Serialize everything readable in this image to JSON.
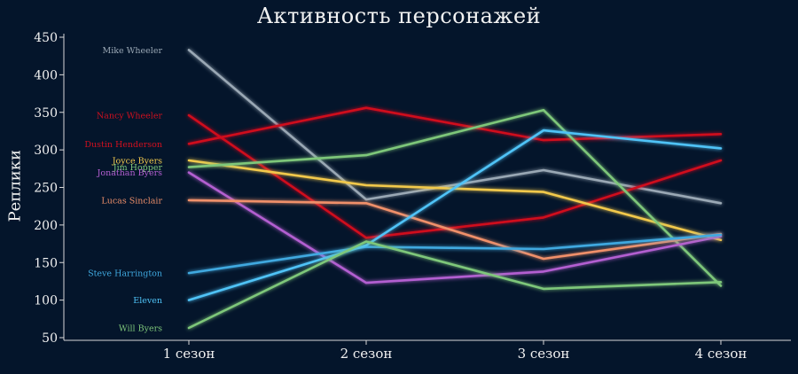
{
  "chart_data": {
    "type": "line",
    "title": "Активность персонажей",
    "xlabel": "",
    "ylabel": "Реплики",
    "categories": [
      "1 сезон",
      "2 сезон",
      "3 сезон",
      "4 сезон"
    ],
    "ylim": [
      45,
      450
    ],
    "yticks": [
      50,
      100,
      150,
      200,
      250,
      300,
      350,
      400,
      450
    ],
    "grid": false,
    "legend": "inline labels at left",
    "series": [
      {
        "name": "Mike Wheeler",
        "color": "#9aa8b5",
        "values": [
          433,
          234,
          273,
          229
        ]
      },
      {
        "name": "Nancy Wheeler",
        "color": "#d0101f",
        "values": [
          346,
          183,
          210,
          286
        ]
      },
      {
        "name": "Dustin Henderson",
        "color": "#d0101f",
        "values": [
          308,
          356,
          313,
          321
        ]
      },
      {
        "name": "Joyce Byers",
        "color": "#f2c94c",
        "values": [
          286,
          253,
          244,
          180
        ]
      },
      {
        "name": "Jim Hopper",
        "color": "#7ec77a",
        "values": [
          277,
          293,
          353,
          119
        ]
      },
      {
        "name": "Jonathan Byers",
        "color": "#b35fd1",
        "values": [
          270,
          123,
          138,
          185
        ]
      },
      {
        "name": "Lucas Sinclair",
        "color": "#f0906a",
        "values": [
          233,
          229,
          155,
          188
        ]
      },
      {
        "name": "Steve Harrington",
        "color": "#3fa9e0",
        "values": [
          136,
          171,
          168,
          187
        ]
      },
      {
        "name": "Eleven",
        "color": "#4fc3f7",
        "values": [
          100,
          173,
          326,
          302
        ]
      },
      {
        "name": "Will Byers",
        "color": "#7ec77a",
        "values": [
          63,
          178,
          115,
          124
        ]
      }
    ]
  }
}
